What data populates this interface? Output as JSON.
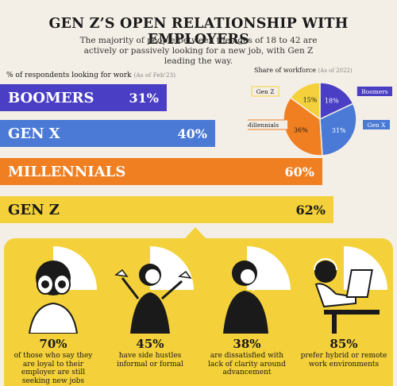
{
  "header": {
    "title": "GEN Z’S OPEN RELATIONSHIP WITH EMPLOYERS",
    "subtitle": "The majority of people between the ages of 18 to 42 are actively or passively looking for a new job, with Gen Z leading the way."
  },
  "chart_data": [
    {
      "type": "bar",
      "title": "% of respondents looking for work",
      "asof": "(As of Feb'23)",
      "categories": [
        "BOOMERS",
        "GEN X",
        "MILLENNIALS",
        "GEN Z"
      ],
      "values": [
        31,
        40,
        60,
        62
      ],
      "value_labels": [
        "31%",
        "40%",
        "60%",
        "62%"
      ],
      "colors": [
        "#4a3ec4",
        "#4a7ad6",
        "#f07f22",
        "#f4d13a"
      ],
      "xlim": [
        0,
        62
      ]
    },
    {
      "type": "pie",
      "title": "Share of workforce",
      "asof": "(As of 2022)",
      "categories": [
        "Boomers",
        "Gen X",
        "Millennials",
        "Gen Z"
      ],
      "values": [
        18,
        31,
        36,
        15
      ],
      "value_labels": [
        "18%",
        "31%",
        "36%",
        "15%"
      ],
      "colors": [
        "#4a3ec4",
        "#4a7ad6",
        "#f07f22",
        "#f4d13a"
      ]
    }
  ],
  "stats": [
    {
      "value": "70%",
      "text": "of those who say they are loyal to their employer are still seeking new jobs"
    },
    {
      "value": "45%",
      "text": "have side hustles informal or formal"
    },
    {
      "value": "38%",
      "text": "are dissatisfied with lack of clarity around advancement"
    },
    {
      "value": "85%",
      "text": "prefer hybrid or remote work environments"
    }
  ]
}
